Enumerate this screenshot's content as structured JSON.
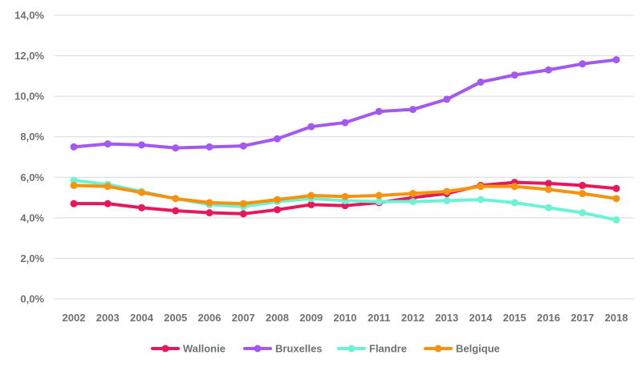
{
  "chart_data": {
    "type": "line",
    "title": "",
    "xlabel": "",
    "ylabel": "",
    "x": [
      "2002",
      "2003",
      "2004",
      "2005",
      "2006",
      "2007",
      "2008",
      "2009",
      "2010",
      "2011",
      "2012",
      "2013",
      "2014",
      "2015",
      "2016",
      "2017",
      "2018"
    ],
    "ylim": [
      0,
      14
    ],
    "yticks": [
      0,
      2,
      4,
      6,
      8,
      10,
      12,
      14
    ],
    "ytick_labels": [
      "0,0%",
      "2,0%",
      "4,0%",
      "6,0%",
      "8,0%",
      "10,0%",
      "12,0%",
      "14,0%"
    ],
    "grid": true,
    "legend_position": "bottom",
    "series": [
      {
        "name": "Wallonie",
        "color": "#e8175d",
        "values": [
          4.7,
          4.7,
          4.5,
          4.35,
          4.25,
          4.2,
          4.4,
          4.65,
          4.6,
          4.75,
          5.0,
          5.2,
          5.6,
          5.75,
          5.7,
          5.6,
          5.45
        ]
      },
      {
        "name": "Bruxelles",
        "color": "#a259f0",
        "values": [
          7.5,
          7.65,
          7.6,
          7.45,
          7.5,
          7.55,
          7.9,
          8.5,
          8.7,
          9.25,
          9.35,
          9.85,
          10.7,
          11.05,
          11.3,
          11.6,
          11.8
        ]
      },
      {
        "name": "Flandre",
        "color": "#6ef2d6",
        "values": [
          5.85,
          5.65,
          5.3,
          4.95,
          4.65,
          4.55,
          4.8,
          4.95,
          4.85,
          4.8,
          4.8,
          4.85,
          4.9,
          4.75,
          4.5,
          4.25,
          3.9
        ]
      },
      {
        "name": "Belgique",
        "color": "#f5920e",
        "values": [
          5.6,
          5.55,
          5.25,
          4.95,
          4.75,
          4.7,
          4.9,
          5.1,
          5.05,
          5.1,
          5.2,
          5.3,
          5.55,
          5.55,
          5.4,
          5.2,
          4.95
        ]
      }
    ]
  }
}
